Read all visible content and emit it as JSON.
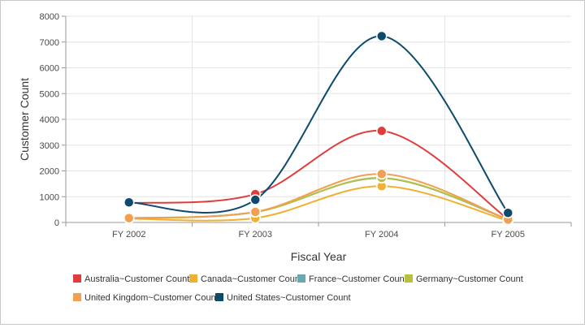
{
  "chart_data": {
    "type": "line",
    "title": "",
    "xlabel": "Fiscal Year",
    "ylabel": "Customer Count",
    "categories": [
      "FY 2002",
      "FY 2003",
      "FY 2004",
      "FY 2005"
    ],
    "ylim": [
      0,
      8000
    ],
    "yticks": [
      0,
      1000,
      2000,
      3000,
      4000,
      5000,
      6000,
      7000,
      8000
    ],
    "grid": true,
    "legend_position": "bottom",
    "series": [
      {
        "name": "Australia~Customer Count",
        "color": "#e03c3c",
        "values": [
          750,
          1100,
          3550,
          130
        ]
      },
      {
        "name": "Canada~Customer Count",
        "color": "#f0b030",
        "values": [
          150,
          170,
          1410,
          60
        ]
      },
      {
        "name": "France~Customer Count",
        "color": "#6aa8b0",
        "values": [
          160,
          400,
          1720,
          120
        ]
      },
      {
        "name": "Germany~Customer Count",
        "color": "#b8c040",
        "values": [
          170,
          400,
          1730,
          130
        ]
      },
      {
        "name": "United Kingdom~Customer Count",
        "color": "#f0a050",
        "values": [
          170,
          410,
          1880,
          110
        ]
      },
      {
        "name": "United States~Customer Count",
        "color": "#0d4a6e",
        "values": [
          780,
          880,
          7230,
          370
        ]
      }
    ]
  }
}
